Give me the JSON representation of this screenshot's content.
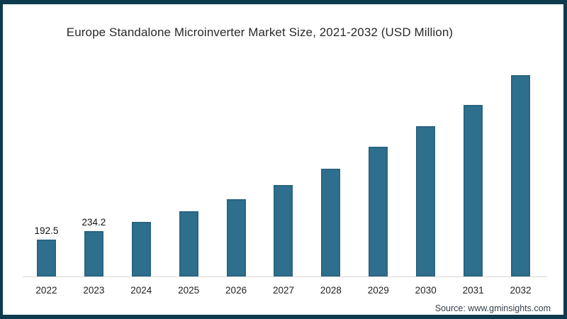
{
  "page": {
    "frame_color": "#0e3a4d",
    "background": "#ffffff"
  },
  "footer": {
    "source": "Source: www.gminsights.com"
  },
  "chart_data": {
    "type": "bar",
    "title": "Europe Standalone Microinverter Market Size, 2021-2032 (USD Million)",
    "categories": [
      "2022",
      "2023",
      "2024",
      "2025",
      "2026",
      "2027",
      "2028",
      "2029",
      "2030",
      "2031",
      "2032"
    ],
    "values": [
      192.5,
      234.2,
      281,
      336,
      401,
      474,
      556,
      670,
      777,
      889,
      1042
    ],
    "data_labels": [
      "192.5",
      "234.2",
      "",
      "",
      "",
      "",
      "",
      "",
      "",
      "",
      ""
    ],
    "xlabel": "",
    "ylabel": "",
    "ylim": [
      0,
      1100
    ],
    "grid": false,
    "legend": false,
    "y_axis_visible": false,
    "bar_color": "#2f6f8e",
    "bar_edge_color": "#2a6483",
    "axis_line_color": "#d8d8d8",
    "value_label_color": "#121212",
    "tick_label_color": "#222222",
    "title_color": "#2a2a2a"
  }
}
